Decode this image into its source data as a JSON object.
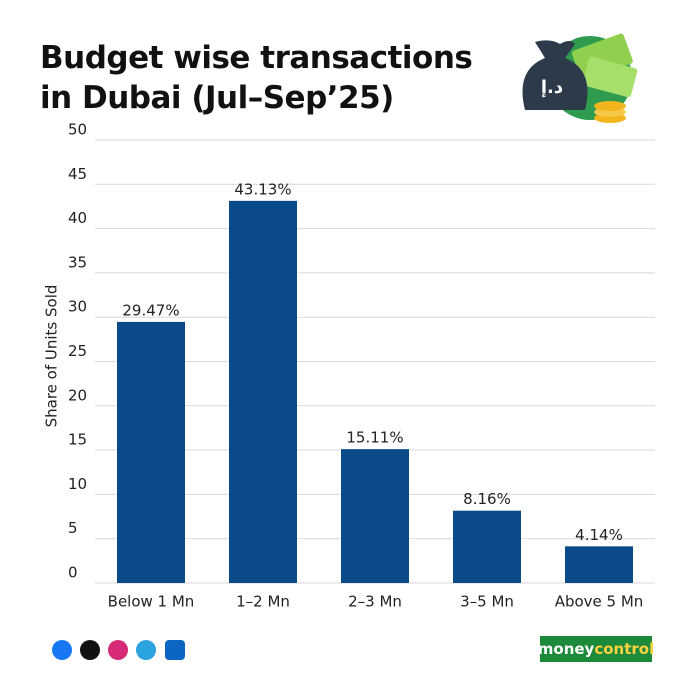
{
  "chart_data": {
    "type": "bar",
    "title": "Budget wise transactions in Dubai (Jul–Sep’25)",
    "y_label": "Share of Units Sold",
    "categories": [
      "Below 1 Mn",
      "1–2 Mn",
      "2–3 Mn",
      "3–5 Mn",
      "Above 5 Mn"
    ],
    "values": [
      29.47,
      43.13,
      15.11,
      8.16,
      4.14
    ],
    "value_labels": [
      "29.47%",
      "43.13%",
      "15.11%",
      "8.16%",
      "4.14%"
    ],
    "color": "#0b4a89",
    "ylim": [
      0,
      50
    ],
    "yticks": [
      0,
      5,
      10,
      15,
      20,
      25,
      30,
      35,
      40,
      45,
      50
    ],
    "grid": true
  },
  "footer": {
    "brand_parts": [
      "money",
      "control"
    ]
  }
}
